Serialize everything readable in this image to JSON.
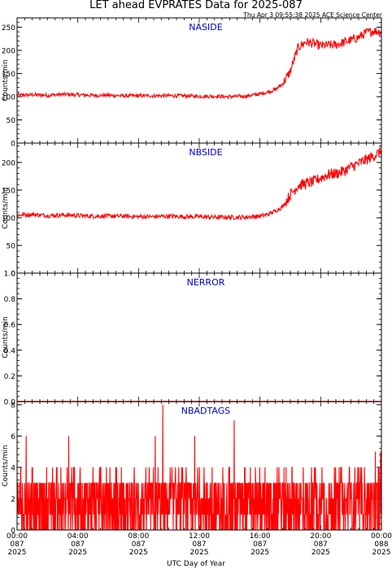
{
  "header": {
    "title": "LET ahead EVPRATES Data for 2025-087",
    "timestamp": "Thu Apr  3 09:55:38 2025 ACE Science Center"
  },
  "colors": {
    "series": "#ff0000",
    "panel_label": "#0000cc",
    "axes": "#000000"
  },
  "x_axis": {
    "label": "UTC Day of Year",
    "range_hours": [
      0,
      24
    ],
    "major_ticks": [
      {
        "hour": 0,
        "time": "00:00",
        "doy": "087",
        "year": "2025"
      },
      {
        "hour": 4,
        "time": "04:00",
        "doy": "087",
        "year": "2025"
      },
      {
        "hour": 8,
        "time": "08:00",
        "doy": "087",
        "year": "2025"
      },
      {
        "hour": 12,
        "time": "12:00",
        "doy": "087",
        "year": "2025"
      },
      {
        "hour": 16,
        "time": "16:00",
        "doy": "087",
        "year": "2025"
      },
      {
        "hour": 20,
        "time": "20:00",
        "doy": "087",
        "year": "2025"
      },
      {
        "hour": 24,
        "time": "00:00",
        "doy": "088",
        "year": "2025"
      }
    ]
  },
  "chart_data": [
    {
      "type": "line",
      "panel": "NASIDE",
      "ylabel": "Counts/min",
      "ylim": [
        0,
        270
      ],
      "yticks": [
        "0",
        "50",
        "100",
        "150",
        "200",
        "250"
      ],
      "x_hours": [
        0,
        1,
        2,
        3,
        4,
        5,
        6,
        7,
        8,
        9,
        10,
        11,
        12,
        13,
        14,
        15,
        16,
        16.5,
        17,
        17.5,
        18,
        18.5,
        19,
        19.5,
        20,
        21,
        22,
        22.5,
        23,
        23.5,
        24
      ],
      "series": [
        {
          "values": [
            103,
            104,
            103,
            105,
            104,
            103,
            103,
            102,
            102,
            102,
            102,
            102,
            101,
            101,
            100,
            101,
            106,
            110,
            115,
            128,
            155,
            205,
            218,
            215,
            210,
            212,
            222,
            228,
            238,
            242,
            240
          ]
        }
      ]
    },
    {
      "type": "line",
      "panel": "NBSIDE",
      "ylabel": "Counts/min",
      "ylim": [
        0,
        235
      ],
      "yticks": [
        "0",
        "50",
        "100",
        "150",
        "200"
      ],
      "x_hours": [
        0,
        1,
        2,
        3,
        4,
        5,
        6,
        7,
        8,
        9,
        10,
        11,
        12,
        13,
        14,
        15,
        16,
        16.5,
        17,
        17.5,
        18,
        18.5,
        19,
        19.5,
        20,
        20.5,
        21,
        21.5,
        22,
        22.5,
        23,
        23.5,
        24
      ],
      "series": [
        {
          "values": [
            105,
            106,
            104,
            105,
            104,
            103,
            103,
            103,
            102,
            102,
            103,
            102,
            102,
            101,
            101,
            101,
            103,
            106,
            112,
            120,
            142,
            158,
            162,
            165,
            172,
            178,
            180,
            184,
            192,
            198,
            205,
            212,
            220
          ]
        }
      ]
    },
    {
      "type": "line",
      "panel": "NERROR",
      "ylabel": "Counts/min",
      "ylim": [
        0,
        1
      ],
      "yticks": [
        "0.0",
        "0.2",
        "0.4",
        "0.6",
        "0.8",
        "1.0"
      ],
      "x_hours": [
        0,
        24
      ],
      "series": [
        {
          "values": [
            0,
            0
          ]
        }
      ]
    },
    {
      "type": "line",
      "panel": "NBADTAGS",
      "ylabel": "Counts/min",
      "ylim": [
        0,
        8.2
      ],
      "yticks": [
        "0",
        "2",
        "4",
        "6",
        "8"
      ],
      "value_range": [
        0,
        8
      ],
      "typical_range": [
        0,
        3
      ],
      "peaks": [
        {
          "hour": 9.6,
          "value": 8
        },
        {
          "hour": 14.3,
          "value": 7
        },
        {
          "hour": 0.6,
          "value": 6
        },
        {
          "hour": 3.4,
          "value": 6
        },
        {
          "hour": 9.1,
          "value": 6
        },
        {
          "hour": 11.7,
          "value": 6
        },
        {
          "hour": 23.6,
          "value": 5
        },
        {
          "hour": 23.95,
          "value": 5
        }
      ],
      "series": [
        {
          "values": []
        }
      ]
    }
  ]
}
